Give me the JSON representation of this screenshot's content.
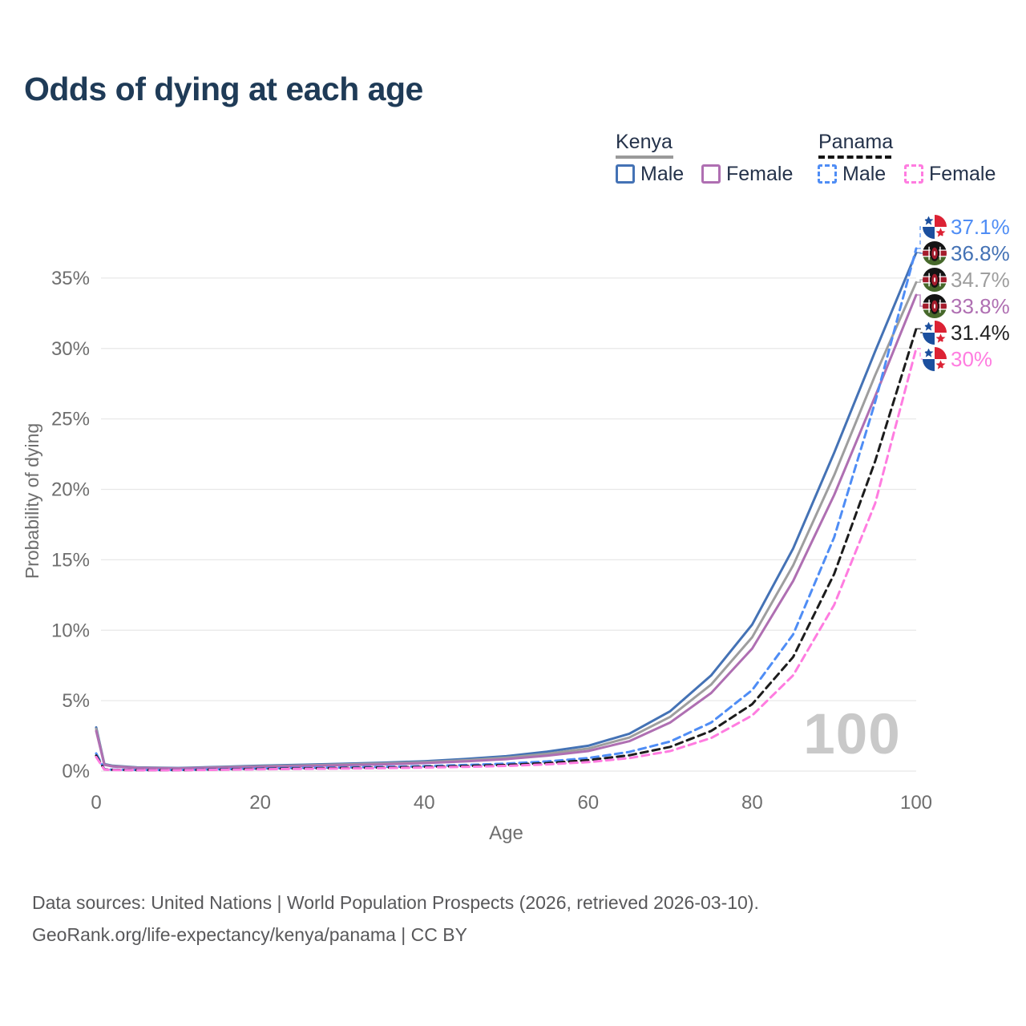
{
  "title": "Odds of dying at each age",
  "watermark_age": "100",
  "legend": {
    "groups": [
      {
        "name": "Kenya",
        "line_style": "solid",
        "line_color": "#9a9a9a",
        "items": [
          {
            "label": "Male",
            "color": "#4472b5",
            "line_style": "solid"
          },
          {
            "label": "Female",
            "color": "#af6fb2",
            "line_style": "solid"
          }
        ]
      },
      {
        "name": "Panama",
        "line_style": "dashed",
        "line_color": "#141414",
        "items": [
          {
            "label": "Male",
            "color": "#4f8df5",
            "line_style": "dashed"
          },
          {
            "label": "Female",
            "color": "#ff7ce0",
            "line_style": "dashed"
          }
        ]
      }
    ]
  },
  "chart_data": {
    "type": "line",
    "title": "Odds of dying at each age",
    "xlabel": "Age",
    "ylabel": "Probability of dying",
    "xlim": [
      0,
      100
    ],
    "ylim": [
      0,
      38.5
    ],
    "x_ticks": [
      0,
      20,
      40,
      60,
      80,
      100
    ],
    "y_ticks_percent": [
      0,
      5,
      10,
      15,
      20,
      25,
      30,
      35
    ],
    "grid": "horizontal",
    "legend_position": "top-right",
    "ages": [
      0,
      1,
      2,
      5,
      10,
      15,
      20,
      25,
      30,
      35,
      40,
      45,
      50,
      55,
      60,
      65,
      70,
      75,
      80,
      85,
      90,
      95,
      100
    ],
    "series": [
      {
        "id": "kenya-male",
        "country": "Kenya",
        "sex": "Male",
        "color": "#4472b5",
        "dash": "solid",
        "values": [
          3.1,
          0.5,
          0.38,
          0.26,
          0.22,
          0.3,
          0.38,
          0.45,
          0.52,
          0.6,
          0.7,
          0.86,
          1.06,
          1.38,
          1.8,
          2.65,
          4.25,
          6.8,
          10.4,
          15.8,
          22.6,
          29.8,
          36.8
        ]
      },
      {
        "id": "kenya-total",
        "country": "Kenya",
        "sex": "Both",
        "color": "#9e9e9e",
        "dash": "solid",
        "values": [
          3.0,
          0.47,
          0.35,
          0.24,
          0.2,
          0.27,
          0.34,
          0.4,
          0.47,
          0.54,
          0.63,
          0.77,
          0.95,
          1.23,
          1.6,
          2.38,
          3.85,
          6.15,
          9.5,
          14.6,
          21.0,
          28.1,
          34.7
        ]
      },
      {
        "id": "kenya-female",
        "country": "Kenya",
        "sex": "Female",
        "color": "#af6fb2",
        "dash": "solid",
        "values": [
          2.85,
          0.45,
          0.33,
          0.22,
          0.18,
          0.24,
          0.3,
          0.36,
          0.42,
          0.48,
          0.57,
          0.69,
          0.85,
          1.09,
          1.42,
          2.12,
          3.45,
          5.55,
          8.7,
          13.5,
          19.6,
          26.6,
          33.8
        ]
      },
      {
        "id": "panama-male",
        "country": "Panama",
        "sex": "Male",
        "color": "#4f8df5",
        "dash": "dashed",
        "values": [
          1.25,
          0.13,
          0.1,
          0.08,
          0.08,
          0.13,
          0.19,
          0.23,
          0.26,
          0.3,
          0.35,
          0.43,
          0.53,
          0.69,
          0.93,
          1.36,
          2.1,
          3.45,
          5.75,
          9.7,
          16.6,
          26.2,
          37.1
        ]
      },
      {
        "id": "panama-total",
        "country": "Panama",
        "sex": "Both",
        "color": "#1c1c1c",
        "dash": "dashed",
        "values": [
          1.1,
          0.12,
          0.09,
          0.07,
          0.07,
          0.11,
          0.16,
          0.19,
          0.22,
          0.25,
          0.3,
          0.36,
          0.44,
          0.57,
          0.78,
          1.12,
          1.72,
          2.85,
          4.75,
          8.1,
          14.0,
          22.0,
          31.4
        ]
      },
      {
        "id": "panama-female",
        "country": "Panama",
        "sex": "Female",
        "color": "#ff7ce0",
        "dash": "dashed",
        "values": [
          1.0,
          0.11,
          0.08,
          0.06,
          0.06,
          0.09,
          0.13,
          0.16,
          0.18,
          0.21,
          0.25,
          0.3,
          0.37,
          0.48,
          0.64,
          0.92,
          1.42,
          2.35,
          3.95,
          6.8,
          11.8,
          19.0,
          30.0
        ]
      }
    ],
    "end_labels": [
      {
        "text": "37.1%",
        "series": "panama-male",
        "flag": "panama",
        "color": "#4f8df5"
      },
      {
        "text": "36.8%",
        "series": "kenya-male",
        "flag": "kenya",
        "color": "#4472b5"
      },
      {
        "text": "34.7%",
        "series": "kenya-total",
        "flag": "kenya",
        "color": "#9e9e9e"
      },
      {
        "text": "33.8%",
        "series": "kenya-female",
        "flag": "kenya",
        "color": "#af6fb2"
      },
      {
        "text": "31.4%",
        "series": "panama-total",
        "flag": "panama",
        "color": "#222222"
      },
      {
        "text": "30%",
        "series": "panama-female",
        "flag": "panama",
        "color": "#ff7ce0"
      }
    ]
  },
  "colors": {
    "title": "#1f3b57",
    "axis_text": "#6e6e6e",
    "grid": "#e8e8e8",
    "watermark": "#c9c9c9",
    "footer_text": "#58585a"
  },
  "footer": {
    "line1": "Data sources: United Nations | World Population Prospects (2026, retrieved 2026-03-10).",
    "line2": "GeoRank.org/life-expectancy/kenya/panama | CC BY"
  }
}
